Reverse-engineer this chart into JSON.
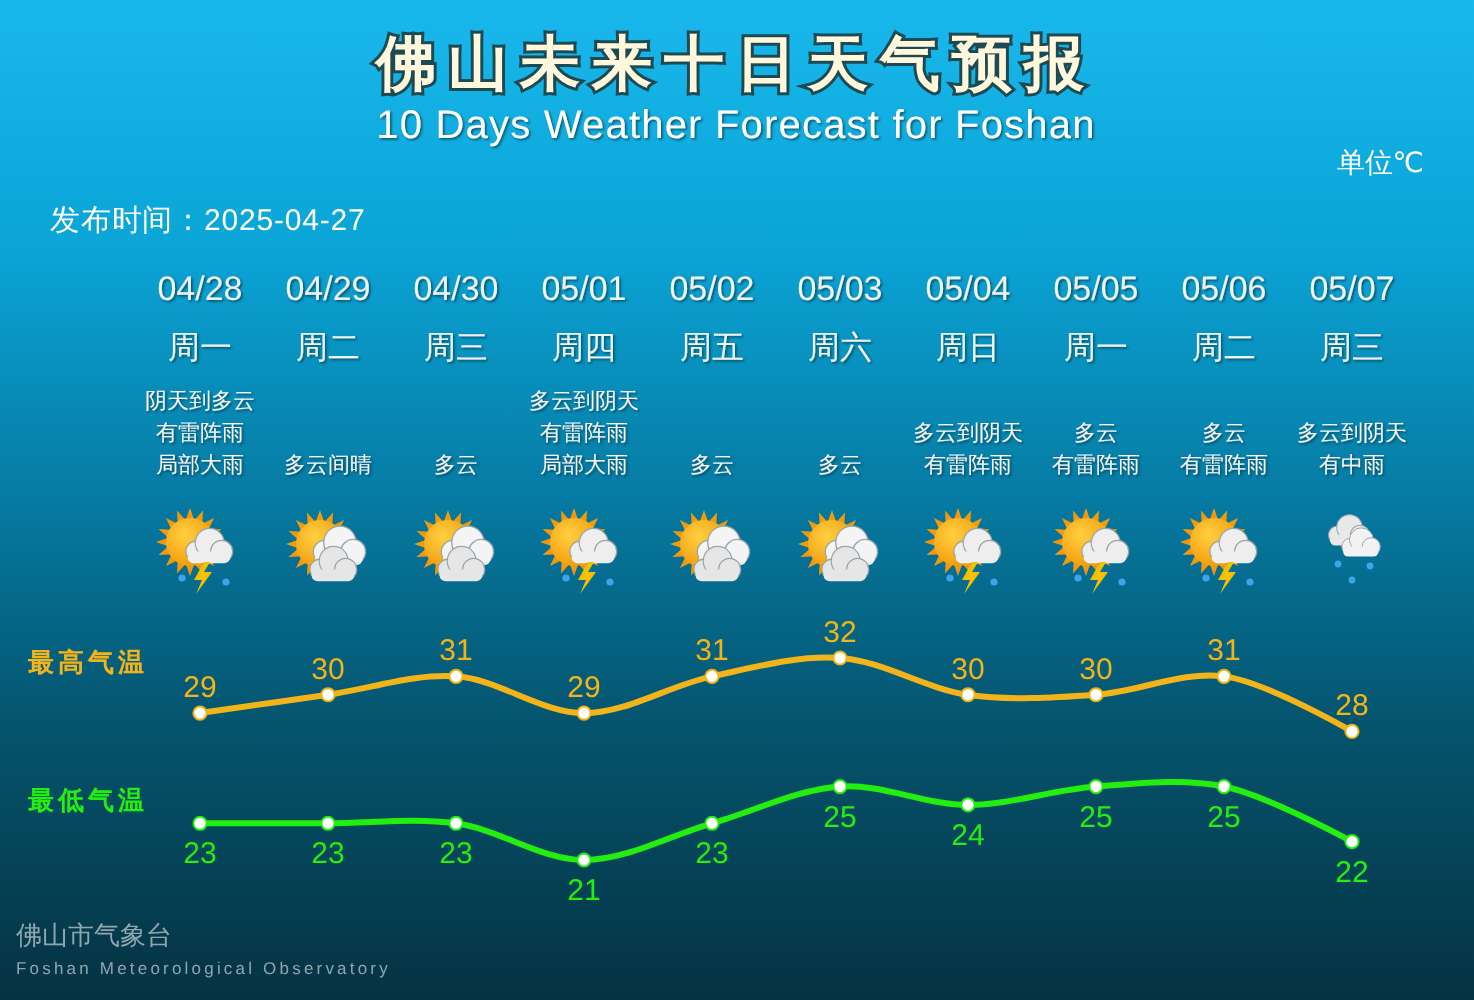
{
  "chart_data": {
    "type": "line",
    "title": "佛山未来十日天气预报",
    "subtitle": "10 Days Weather Forecast for Foshan",
    "categories": [
      "04/28",
      "04/29",
      "04/30",
      "05/01",
      "05/02",
      "05/03",
      "05/04",
      "05/05",
      "05/06",
      "05/07"
    ],
    "series": [
      {
        "name": "最高气温",
        "color": "#f2b418",
        "values": [
          29,
          30,
          31,
          29,
          31,
          32,
          30,
          30,
          31,
          28
        ]
      },
      {
        "name": "最低气温",
        "color": "#22ee10",
        "values": [
          23,
          23,
          23,
          21,
          23,
          25,
          24,
          25,
          25,
          22
        ]
      }
    ],
    "data_labels": true,
    "marker": "circle",
    "line_style": "solid",
    "annotations": [
      "单位℃",
      "发布时间：2025-04-27",
      "佛山市气象台",
      "Foshan Meteorological Observatory",
      "周一",
      "周二",
      "周三",
      "周四",
      "周五",
      "周六",
      "周日",
      "周一",
      "周二",
      "周三",
      "阴天到多云有雷阵雨局部大雨",
      "多云间晴",
      "多云",
      "多云到阴天有雷阵雨局部大雨",
      "多云",
      "多云",
      "多云到阴天有雷阵雨",
      "多云有雷阵雨",
      "多云有雷阵雨",
      "多云到阴天有中雨"
    ]
  }
}
